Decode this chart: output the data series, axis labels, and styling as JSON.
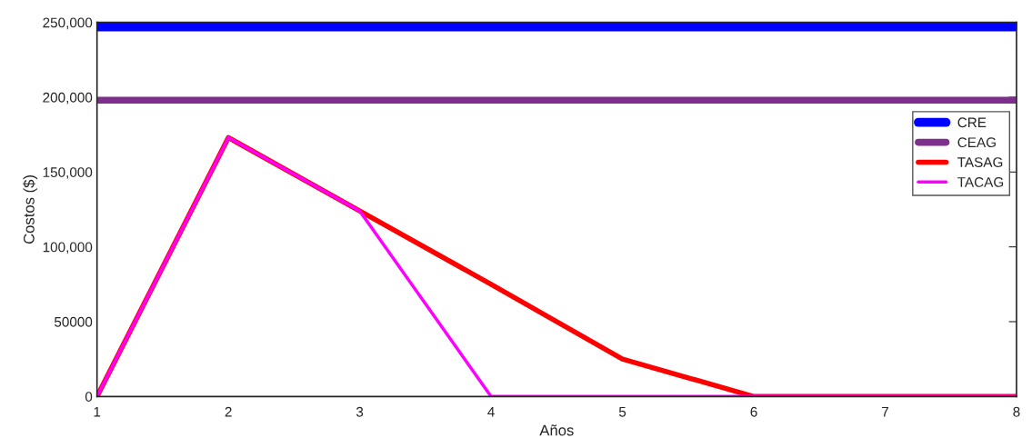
{
  "chart_data": {
    "type": "line",
    "xlabel": "Años",
    "ylabel": "Costos ($)",
    "x": [
      1,
      2,
      3,
      4,
      5,
      6,
      7,
      8
    ],
    "series": [
      {
        "name": "CRE",
        "color": "#0000ff",
        "values": [
          247000,
          247000,
          247000,
          247000,
          247000,
          247000,
          247000,
          247000
        ]
      },
      {
        "name": "CEAG",
        "color": "#7e2f8e",
        "values": [
          198000,
          198000,
          198000,
          198000,
          198000,
          198000,
          198000,
          198000
        ]
      },
      {
        "name": "TASAG",
        "color": "#ff0000",
        "values": [
          0,
          173000,
          124000,
          75000,
          25000,
          0,
          0,
          0
        ]
      },
      {
        "name": "TACAG",
        "color": "#ff00ff",
        "values": [
          0,
          173000,
          124000,
          0,
          0,
          0,
          0,
          0
        ]
      }
    ],
    "xlim": [
      1,
      8
    ],
    "ylim": [
      0,
      250000
    ],
    "xticks": [
      1,
      2,
      3,
      4,
      5,
      6,
      7,
      8
    ],
    "yticks": [
      0,
      {
        "value": 50000,
        "label": "50000"
      },
      {
        "value": 100000,
        "label": "100,000"
      },
      {
        "value": 150000,
        "label": "150,000"
      },
      {
        "value": 200000,
        "label": "200,000"
      },
      {
        "value": 250000,
        "label": "250,000"
      }
    ],
    "grid": false,
    "legend": "top right",
    "line_style": "solid",
    "marker": "none"
  }
}
